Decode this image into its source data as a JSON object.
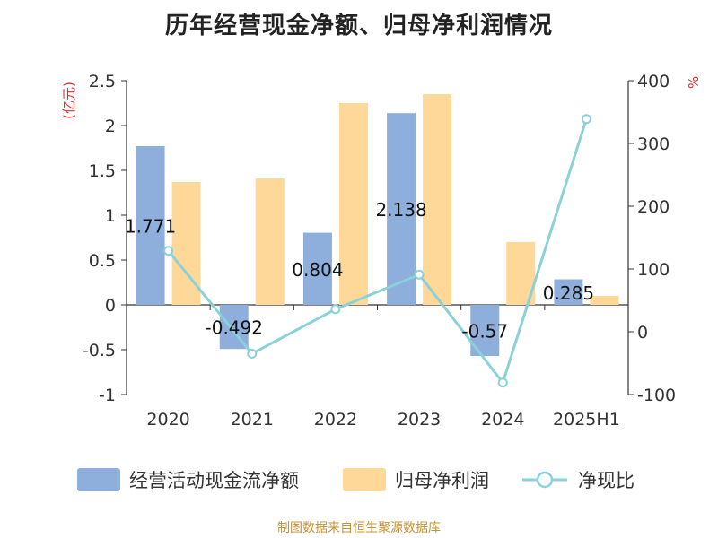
{
  "title": "历年经营现金净额、归母净利润情况",
  "source": "制图数据来自恒生聚源数据库",
  "colors": {
    "operating_cash": "#8eaedc",
    "net_profit": "#fdd898",
    "ratio": "#8ad1d8",
    "axis_unit": "#e03030",
    "axis": "#333333"
  },
  "chart_data": {
    "type": "bar",
    "categories": [
      "2020",
      "2021",
      "2022",
      "2023",
      "2024",
      "2025H1"
    ],
    "series": [
      {
        "name": "经营活动现金流净额",
        "type": "bar",
        "axis": "left",
        "values": [
          1.771,
          -0.492,
          0.804,
          2.138,
          -0.57,
          0.285
        ],
        "labels": [
          "1.771",
          "-0.492",
          "0.804",
          "2.138",
          "-0.57",
          "0.285"
        ]
      },
      {
        "name": "归母净利润",
        "type": "bar",
        "axis": "left",
        "values": [
          1.37,
          1.41,
          2.25,
          2.35,
          0.7,
          0.1
        ]
      },
      {
        "name": "净现比",
        "type": "line",
        "axis": "right",
        "values": [
          129,
          -35,
          36,
          91,
          -81,
          339
        ]
      }
    ],
    "left_axis": {
      "unit": "(亿元)",
      "ylim": [
        -1,
        2.5
      ],
      "ticks": [
        2.5,
        2,
        1.5,
        1,
        0.5,
        0,
        -0.5,
        -1
      ],
      "tick_labels": [
        "2.5",
        "2",
        "1.5",
        "1",
        "0.5",
        "0",
        "-0.5",
        "-1"
      ]
    },
    "right_axis": {
      "unit": "%",
      "ylim": [
        -100,
        400
      ],
      "ticks": [
        400,
        300,
        200,
        100,
        0,
        -100
      ],
      "tick_labels": [
        "400",
        "300",
        "200",
        "100",
        "0",
        "-100"
      ]
    },
    "legend": {
      "position": "bottom",
      "items": [
        {
          "label": "经营活动现金流净额",
          "kind": "bar",
          "color": "#8eaedc"
        },
        {
          "label": "归母净利润",
          "kind": "bar",
          "color": "#fdd898"
        },
        {
          "label": "净现比",
          "kind": "line",
          "color": "#8ad1d8"
        }
      ]
    },
    "grid": false
  }
}
